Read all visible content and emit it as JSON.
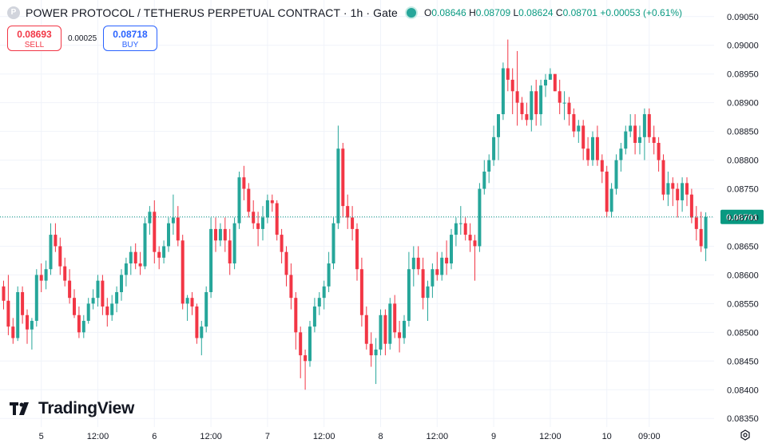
{
  "header": {
    "title": "POWER PROTOCOL / TETHERUS PERPETUAL CONTRACT · 1h · Gate",
    "ohlc": {
      "o_label": "O",
      "o": "0.08646",
      "h_label": "H",
      "h": "0.08709",
      "l_label": "L",
      "l": "0.08624",
      "c_label": "C",
      "c": "0.08701",
      "change": "+0.00053 (+0.61%)"
    }
  },
  "trade": {
    "sell_price": "0.08693",
    "sell_label": "SELL",
    "spread": "0.00025",
    "buy_price": "0.08718",
    "buy_label": "BUY"
  },
  "branding": {
    "logo_text": "TradingView"
  },
  "colors": {
    "up": "#26a69a",
    "down": "#f23645",
    "price_line": "#089981",
    "grid": "#f0f3fa"
  },
  "chart_data": {
    "type": "candlestick",
    "current_price": "0.08701",
    "y_ticks": [
      "0.09050",
      "0.09000",
      "0.08950",
      "0.08900",
      "0.08850",
      "0.08800",
      "0.08750",
      "0.08700",
      "0.08650",
      "0.08600",
      "0.08550",
      "0.08500",
      "0.08450",
      "0.08400",
      "0.08350"
    ],
    "ylim": [
      0.08335,
      0.09065
    ],
    "x_ticks": [
      {
        "label": "5",
        "index": 8
      },
      {
        "label": "12:00",
        "index": 20
      },
      {
        "label": "6",
        "index": 32
      },
      {
        "label": "12:00",
        "index": 44
      },
      {
        "label": "7",
        "index": 56
      },
      {
        "label": "12:00",
        "index": 68
      },
      {
        "label": "8",
        "index": 80
      },
      {
        "label": "12:00",
        "index": 92
      },
      {
        "label": "9",
        "index": 104
      },
      {
        "label": "12:00",
        "index": 116
      },
      {
        "label": "10",
        "index": 128
      },
      {
        "label": "09:00",
        "index": 137
      }
    ],
    "candles": [
      [
        0.0858,
        0.0859,
        0.0854,
        0.08555
      ],
      [
        0.08555,
        0.086,
        0.08495,
        0.0851
      ],
      [
        0.0851,
        0.08525,
        0.0848,
        0.0849
      ],
      [
        0.0849,
        0.0858,
        0.08485,
        0.0857
      ],
      [
        0.0857,
        0.0858,
        0.08515,
        0.0853
      ],
      [
        0.0853,
        0.0854,
        0.0848,
        0.08505
      ],
      [
        0.08505,
        0.08525,
        0.0847,
        0.0852
      ],
      [
        0.0852,
        0.0861,
        0.0851,
        0.086
      ],
      [
        0.086,
        0.0862,
        0.0857,
        0.0859
      ],
      [
        0.0859,
        0.08625,
        0.08575,
        0.0861
      ],
      [
        0.0861,
        0.0869,
        0.086,
        0.0867
      ],
      [
        0.0867,
        0.0869,
        0.0864,
        0.0865
      ],
      [
        0.0865,
        0.08665,
        0.086,
        0.08615
      ],
      [
        0.08615,
        0.0863,
        0.0858,
        0.0859
      ],
      [
        0.0859,
        0.0861,
        0.0855,
        0.0856
      ],
      [
        0.0856,
        0.08575,
        0.08525,
        0.0853
      ],
      [
        0.0853,
        0.08545,
        0.0849,
        0.085
      ],
      [
        0.085,
        0.0853,
        0.0849,
        0.0852
      ],
      [
        0.0852,
        0.0856,
        0.08515,
        0.0855
      ],
      [
        0.0855,
        0.08575,
        0.0854,
        0.0856
      ],
      [
        0.0856,
        0.086,
        0.08545,
        0.0859
      ],
      [
        0.0859,
        0.086,
        0.0853,
        0.08545
      ],
      [
        0.08545,
        0.0856,
        0.0851,
        0.0853
      ],
      [
        0.0853,
        0.08565,
        0.0852,
        0.0855
      ],
      [
        0.0855,
        0.0858,
        0.08535,
        0.0857
      ],
      [
        0.0857,
        0.0861,
        0.08555,
        0.086
      ],
      [
        0.086,
        0.0863,
        0.0858,
        0.0862
      ],
      [
        0.0862,
        0.0865,
        0.086,
        0.0864
      ],
      [
        0.0864,
        0.08655,
        0.0861,
        0.0862
      ],
      [
        0.0862,
        0.0864,
        0.086,
        0.08615
      ],
      [
        0.08615,
        0.087,
        0.0861,
        0.0869
      ],
      [
        0.0869,
        0.0872,
        0.0867,
        0.0871
      ],
      [
        0.0871,
        0.0873,
        0.0862,
        0.0864
      ],
      [
        0.0864,
        0.0865,
        0.0861,
        0.0863
      ],
      [
        0.0863,
        0.0866,
        0.0862,
        0.0865
      ],
      [
        0.0865,
        0.087,
        0.0864,
        0.0869
      ],
      [
        0.0869,
        0.0874,
        0.0867,
        0.087
      ],
      [
        0.087,
        0.0872,
        0.0865,
        0.0866
      ],
      [
        0.0866,
        0.0867,
        0.0854,
        0.0855
      ],
      [
        0.0855,
        0.08565,
        0.0852,
        0.0856
      ],
      [
        0.0856,
        0.0857,
        0.0853,
        0.08545
      ],
      [
        0.08545,
        0.0855,
        0.0848,
        0.0849
      ],
      [
        0.0849,
        0.0852,
        0.0846,
        0.0851
      ],
      [
        0.0851,
        0.0858,
        0.085,
        0.0857
      ],
      [
        0.0857,
        0.087,
        0.0856,
        0.0868
      ],
      [
        0.0868,
        0.087,
        0.0864,
        0.0866
      ],
      [
        0.0866,
        0.0869,
        0.0865,
        0.0868
      ],
      [
        0.0868,
        0.087,
        0.0864,
        0.0866
      ],
      [
        0.0866,
        0.0868,
        0.086,
        0.0862
      ],
      [
        0.0862,
        0.087,
        0.0861,
        0.0869
      ],
      [
        0.0869,
        0.0878,
        0.0868,
        0.0877
      ],
      [
        0.0877,
        0.0879,
        0.0873,
        0.0875
      ],
      [
        0.0875,
        0.0876,
        0.087,
        0.0871
      ],
      [
        0.0871,
        0.0873,
        0.0868,
        0.0869
      ],
      [
        0.0869,
        0.0871,
        0.0865,
        0.0868
      ],
      [
        0.0868,
        0.0872,
        0.0866,
        0.087
      ],
      [
        0.087,
        0.0874,
        0.0869,
        0.0873
      ],
      [
        0.0873,
        0.0874,
        0.0871,
        0.08725
      ],
      [
        0.08725,
        0.0873,
        0.0866,
        0.0867
      ],
      [
        0.0867,
        0.0868,
        0.0862,
        0.0864
      ],
      [
        0.0864,
        0.0865,
        0.0858,
        0.086
      ],
      [
        0.086,
        0.0862,
        0.0854,
        0.0856
      ],
      [
        0.0856,
        0.0857,
        0.0847,
        0.085
      ],
      [
        0.085,
        0.0851,
        0.0842,
        0.0846
      ],
      [
        0.0846,
        0.0847,
        0.084,
        0.0845
      ],
      [
        0.0845,
        0.0852,
        0.0844,
        0.0851
      ],
      [
        0.0851,
        0.0856,
        0.085,
        0.08545
      ],
      [
        0.08545,
        0.0857,
        0.0853,
        0.0856
      ],
      [
        0.0856,
        0.0859,
        0.0854,
        0.0858
      ],
      [
        0.0858,
        0.0864,
        0.0857,
        0.0862
      ],
      [
        0.0862,
        0.087,
        0.0861,
        0.0869
      ],
      [
        0.0869,
        0.0886,
        0.0868,
        0.0882
      ],
      [
        0.0882,
        0.0883,
        0.087,
        0.0872
      ],
      [
        0.0872,
        0.0874,
        0.0868,
        0.087
      ],
      [
        0.087,
        0.0872,
        0.0866,
        0.0868
      ],
      [
        0.0868,
        0.0869,
        0.0859,
        0.0861
      ],
      [
        0.0861,
        0.0863,
        0.0851,
        0.0853
      ],
      [
        0.0853,
        0.08545,
        0.0847,
        0.0848
      ],
      [
        0.0848,
        0.085,
        0.0844,
        0.0846
      ],
      [
        0.0846,
        0.0849,
        0.0841,
        0.0847
      ],
      [
        0.0847,
        0.0854,
        0.0846,
        0.0853
      ],
      [
        0.0853,
        0.0854,
        0.0846,
        0.0848
      ],
      [
        0.0848,
        0.0856,
        0.0847,
        0.0855
      ],
      [
        0.0855,
        0.08565,
        0.0849,
        0.085
      ],
      [
        0.085,
        0.0852,
        0.08465,
        0.0849
      ],
      [
        0.0849,
        0.0853,
        0.0848,
        0.0852
      ],
      [
        0.0852,
        0.0864,
        0.0851,
        0.0861
      ],
      [
        0.0861,
        0.0865,
        0.0858,
        0.0863
      ],
      [
        0.0863,
        0.0865,
        0.086,
        0.0861
      ],
      [
        0.0861,
        0.0863,
        0.0854,
        0.0856
      ],
      [
        0.0856,
        0.0859,
        0.0852,
        0.0858
      ],
      [
        0.0858,
        0.0862,
        0.0856,
        0.0861
      ],
      [
        0.0861,
        0.0864,
        0.0859,
        0.086
      ],
      [
        0.086,
        0.0864,
        0.0859,
        0.0863
      ],
      [
        0.0863,
        0.0866,
        0.086,
        0.0862
      ],
      [
        0.0862,
        0.0868,
        0.0861,
        0.0867
      ],
      [
        0.0867,
        0.087,
        0.0865,
        0.0869
      ],
      [
        0.0869,
        0.0872,
        0.0867,
        0.0869
      ],
      [
        0.0869,
        0.087,
        0.0866,
        0.0867
      ],
      [
        0.0867,
        0.0869,
        0.0864,
        0.0866
      ],
      [
        0.0866,
        0.0867,
        0.0859,
        0.0865
      ],
      [
        0.0865,
        0.0876,
        0.0864,
        0.0875
      ],
      [
        0.0875,
        0.088,
        0.0874,
        0.0878
      ],
      [
        0.0878,
        0.0881,
        0.0876,
        0.088
      ],
      [
        0.088,
        0.0886,
        0.0879,
        0.0884
      ],
      [
        0.0884,
        0.0888,
        0.088,
        0.0888
      ],
      [
        0.0888,
        0.0897,
        0.0887,
        0.0896
      ],
      [
        0.0896,
        0.0901,
        0.0892,
        0.0894
      ],
      [
        0.0894,
        0.0896,
        0.0888,
        0.0892
      ],
      [
        0.0892,
        0.0899,
        0.0886,
        0.089
      ],
      [
        0.089,
        0.0891,
        0.0887,
        0.0888
      ],
      [
        0.0888,
        0.089,
        0.0886,
        0.0887
      ],
      [
        0.0887,
        0.0893,
        0.0885,
        0.0892
      ],
      [
        0.0892,
        0.0894,
        0.0886,
        0.0888
      ],
      [
        0.0888,
        0.0894,
        0.0886,
        0.0893
      ],
      [
        0.0893,
        0.0895,
        0.0891,
        0.0894
      ],
      [
        0.0894,
        0.0896,
        0.0894,
        0.0895
      ],
      [
        0.0895,
        0.0895,
        0.0892,
        0.0892
      ],
      [
        0.0892,
        0.0894,
        0.0888,
        0.089
      ],
      [
        0.089,
        0.0892,
        0.0887,
        0.089
      ],
      [
        0.089,
        0.0891,
        0.0886,
        0.0888
      ],
      [
        0.0888,
        0.0889,
        0.0884,
        0.0885
      ],
      [
        0.0885,
        0.0887,
        0.0883,
        0.0886
      ],
      [
        0.0886,
        0.0887,
        0.088,
        0.0882
      ],
      [
        0.0882,
        0.0884,
        0.0879,
        0.088
      ],
      [
        0.088,
        0.0885,
        0.0879,
        0.0884
      ],
      [
        0.0884,
        0.0886,
        0.0879,
        0.088
      ],
      [
        0.088,
        0.0881,
        0.0876,
        0.0878
      ],
      [
        0.0878,
        0.0879,
        0.087,
        0.0871
      ],
      [
        0.0871,
        0.0876,
        0.087,
        0.0875
      ],
      [
        0.0875,
        0.0881,
        0.0874,
        0.088
      ],
      [
        0.088,
        0.0883,
        0.0878,
        0.0882
      ],
      [
        0.0882,
        0.0886,
        0.0881,
        0.0885
      ],
      [
        0.0885,
        0.0888,
        0.0884,
        0.0886
      ],
      [
        0.0886,
        0.0888,
        0.0881,
        0.0883
      ],
      [
        0.0883,
        0.0886,
        0.0881,
        0.0884
      ],
      [
        0.0884,
        0.0889,
        0.088,
        0.0888
      ],
      [
        0.0888,
        0.0889,
        0.0883,
        0.0884
      ],
      [
        0.0884,
        0.0886,
        0.0881,
        0.0883
      ],
      [
        0.0883,
        0.0884,
        0.0878,
        0.088
      ],
      [
        0.088,
        0.0881,
        0.0873,
        0.0874
      ],
      [
        0.0874,
        0.0878,
        0.0872,
        0.0876
      ],
      [
        0.0876,
        0.0877,
        0.0872,
        0.0875
      ],
      [
        0.0875,
        0.0876,
        0.087,
        0.0873
      ],
      [
        0.0873,
        0.0877,
        0.0871,
        0.0876
      ],
      [
        0.0876,
        0.0877,
        0.0872,
        0.0874
      ],
      [
        0.0874,
        0.0875,
        0.0869,
        0.087
      ],
      [
        0.087,
        0.0872,
        0.0866,
        0.0868
      ],
      [
        0.0868,
        0.0871,
        0.0864,
        0.0865
      ],
      [
        0.08646,
        0.08709,
        0.08624,
        0.08701
      ]
    ]
  }
}
